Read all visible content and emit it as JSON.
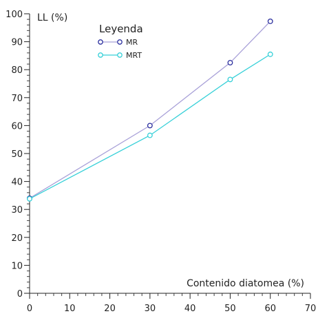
{
  "chart_data": {
    "type": "line",
    "title": "",
    "xlabel": "Contenido diatomea (%)",
    "ylabel": "LL (%)",
    "xlim": [
      0,
      70
    ],
    "ylim": [
      0,
      100
    ],
    "x_ticks": [
      0,
      10,
      20,
      30,
      40,
      50,
      60,
      70
    ],
    "y_ticks": [
      0,
      10,
      20,
      30,
      40,
      50,
      60,
      70,
      80,
      90,
      100
    ],
    "x_minor_step": 2,
    "y_minor_step": 2,
    "grid": false,
    "legend": {
      "title": "Leyenda",
      "placement": "top-left"
    },
    "series": [
      {
        "name": "MR",
        "x": [
          0,
          30,
          50,
          60
        ],
        "y": [
          34,
          60,
          82.5,
          97.3
        ],
        "line_color": "#a8a0d8",
        "marker_color": "#2b2f9e"
      },
      {
        "name": "MRT",
        "x": [
          0,
          30,
          50,
          60
        ],
        "y": [
          33.8,
          56.5,
          76.5,
          85.5
        ],
        "line_color": "#36d0d8",
        "marker_color": "#36d0d8"
      }
    ]
  }
}
